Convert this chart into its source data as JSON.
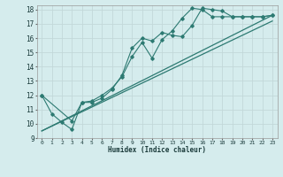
{
  "background_color": "#d5eced",
  "grid_color": "#c2d8d9",
  "line_color": "#2d7a72",
  "xlim": [
    -0.5,
    23.5
  ],
  "ylim": [
    9,
    18.3
  ],
  "yticks": [
    9,
    10,
    11,
    12,
    13,
    14,
    15,
    16,
    17,
    18
  ],
  "xticks": [
    0,
    1,
    2,
    3,
    4,
    5,
    6,
    7,
    8,
    9,
    10,
    11,
    12,
    13,
    14,
    15,
    16,
    17,
    18,
    19,
    20,
    21,
    22,
    23
  ],
  "xlabel": "Humidex (Indice chaleur)",
  "series1_x": [
    0,
    1,
    2,
    3,
    4,
    5,
    6,
    7,
    8,
    9,
    10,
    11,
    12,
    13,
    14,
    15,
    16,
    17,
    18,
    19,
    20,
    21,
    22,
    23
  ],
  "series1_y": [
    12.0,
    10.7,
    10.1,
    9.6,
    11.5,
    11.5,
    11.8,
    12.4,
    13.4,
    15.3,
    16.0,
    15.8,
    16.4,
    16.2,
    16.1,
    16.9,
    18.1,
    18.0,
    17.9,
    17.5,
    17.5,
    17.5,
    17.5,
    17.6
  ],
  "series2_x": [
    0,
    3,
    4,
    5,
    6,
    7,
    8,
    9,
    10,
    11,
    12,
    13,
    14,
    15,
    16,
    17,
    18,
    19,
    20,
    21,
    22,
    23
  ],
  "series2_y": [
    12.0,
    10.2,
    11.5,
    11.6,
    12.0,
    12.5,
    13.3,
    14.7,
    15.7,
    14.6,
    15.9,
    16.5,
    17.4,
    18.1,
    18.0,
    17.5,
    17.5,
    17.5,
    17.5,
    17.5,
    17.5,
    17.6
  ],
  "series3_x": [
    0,
    23
  ],
  "series3_y": [
    9.5,
    17.6
  ],
  "series4_x": [
    0,
    23
  ],
  "series4_y": [
    9.5,
    17.2
  ]
}
